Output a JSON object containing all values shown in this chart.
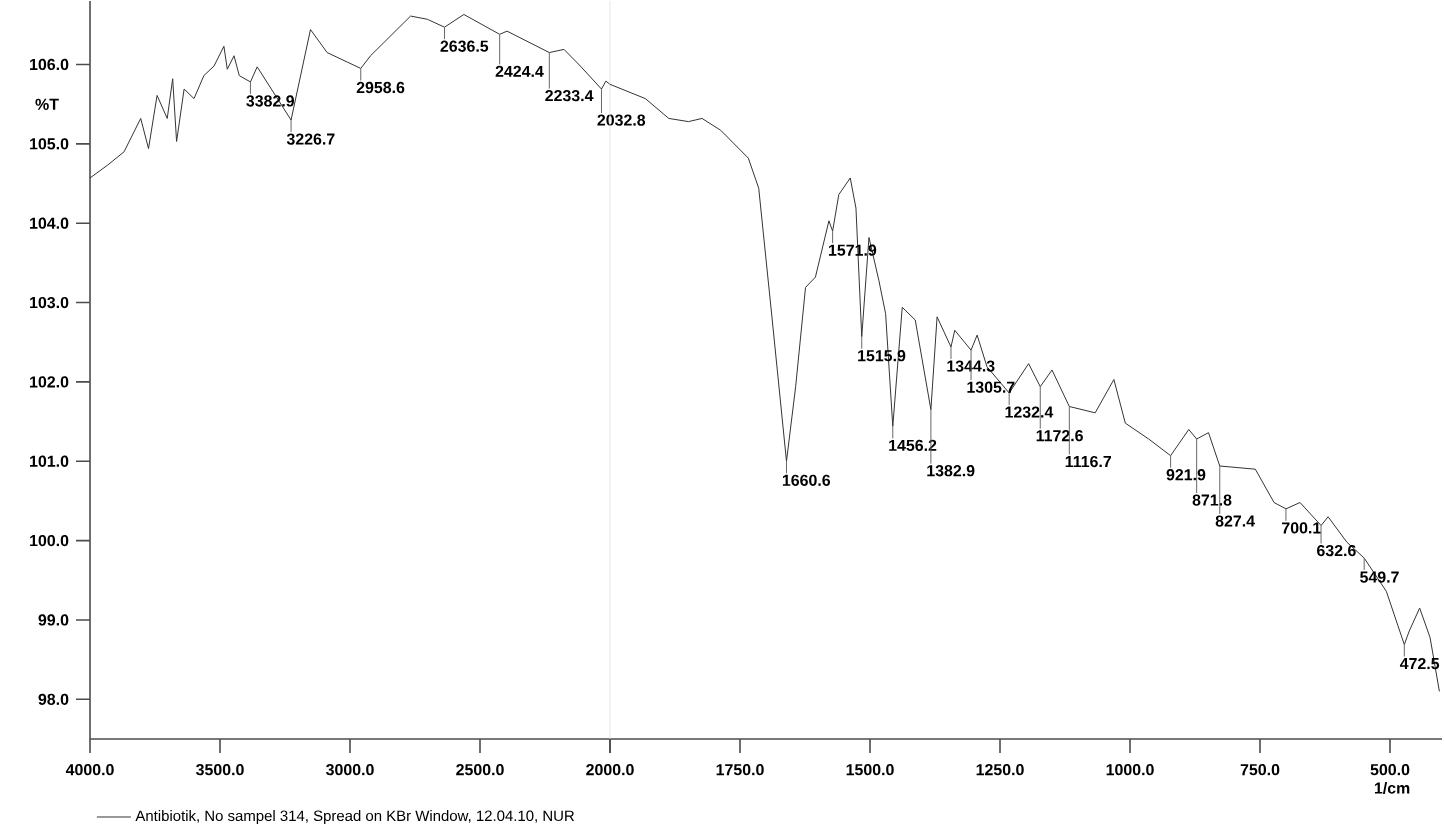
{
  "chart_data": [
    {
      "type": "line",
      "ylabel": "%T",
      "xlim": [
        4000,
        2000
      ],
      "ylim": [
        97.5,
        106.8
      ],
      "xticks": [
        {
          "value": 4000,
          "label": "4000.0"
        },
        {
          "value": 3500,
          "label": "3500.0"
        },
        {
          "value": 3000,
          "label": "3000.0"
        },
        {
          "value": 2500,
          "label": "2500.0"
        },
        {
          "value": 2000,
          "label": null
        }
      ],
      "yticks": [
        {
          "value": 98,
          "label": "98.0"
        },
        {
          "value": 99,
          "label": "99.0"
        },
        {
          "value": 100,
          "label": "100.0"
        },
        {
          "value": 101,
          "label": "101.0"
        },
        {
          "value": 102,
          "label": "102.0"
        },
        {
          "value": 103,
          "label": "103.0"
        },
        {
          "value": 104,
          "label": "104.0"
        },
        {
          "value": 105,
          "label": "105.0"
        },
        {
          "value": 106,
          "label": "106.0"
        }
      ],
      "legend": "bottom left",
      "grid": false,
      "series": [
        {
          "name": "Antibiotik, No sampel 314, Spread on KBr Window, 12.04.10, NUR",
          "color": "#333333",
          "x": [
            4000,
            3933,
            3869,
            3805,
            3775,
            3742,
            3703,
            3682,
            3667,
            3638,
            3600,
            3562,
            3523,
            3485,
            3472,
            3446,
            3426,
            3382.9,
            3357,
            3226.7,
            3152,
            3088,
            2958.6,
            2921,
            2767,
            2703,
            2636.5,
            2562,
            2424.4,
            2396,
            2233.4,
            2177,
            2114,
            2032.8,
            2016,
            2000
          ],
          "values": [
            104.57,
            104.73,
            104.9,
            105.32,
            104.94,
            105.61,
            105.32,
            105.82,
            105.03,
            105.69,
            105.57,
            105.86,
            105.98,
            106.23,
            105.94,
            106.11,
            105.86,
            105.78,
            105.97,
            105.3,
            106.44,
            106.15,
            105.95,
            106.11,
            106.61,
            106.57,
            106.47,
            106.63,
            106.38,
            106.42,
            106.15,
            106.19,
            105.98,
            105.69,
            105.79,
            105.75
          ]
        }
      ],
      "annotations": [
        {
          "text": "3382.9",
          "x": 3382.9,
          "y": 105.78
        },
        {
          "text": "3226.7",
          "x": 3226.7,
          "y": 105.3
        },
        {
          "text": "2958.6",
          "x": 2958.6,
          "y": 105.95
        },
        {
          "text": "2636.5",
          "x": 2636.5,
          "y": 106.47
        },
        {
          "text": "2424.4",
          "x": 2424.4,
          "y": 106.38
        },
        {
          "text": "2233.4",
          "x": 2233.4,
          "y": 106.15
        },
        {
          "text": "2032.8",
          "x": 2032.8,
          "y": 105.69
        }
      ]
    },
    {
      "type": "line",
      "xlabel": "1/cm",
      "tick_labels": "x",
      "grid": false,
      "xlim": [
        2000,
        400
      ],
      "ylim": [
        97.5,
        106.8
      ],
      "yticks": [
        {
          "value": 98,
          "label": null
        },
        {
          "value": 99,
          "label": null
        },
        {
          "value": 100,
          "label": null
        },
        {
          "value": 101,
          "label": null
        },
        {
          "value": 102,
          "label": null
        },
        {
          "value": 103,
          "label": null
        },
        {
          "value": 104,
          "label": null
        },
        {
          "value": 105,
          "label": null
        },
        {
          "value": 106,
          "label": null
        }
      ],
      "xticks": [
        {
          "value": 2000,
          "label": "2000.0"
        },
        {
          "value": 1750,
          "label": "1750.0"
        },
        {
          "value": 1500,
          "label": "1500.0"
        },
        {
          "value": 1250,
          "label": "1250.0"
        },
        {
          "value": 1000,
          "label": "1000.0"
        },
        {
          "value": 750,
          "label": "750.0"
        },
        {
          "value": 500,
          "label": "500.0"
        }
      ],
      "series": [
        {
          "color": "#333333",
          "x": [
            2000,
            1932,
            1887,
            1849,
            1823,
            1787,
            1734,
            1714,
            1688,
            1660.6,
            1643,
            1624,
            1605,
            1579,
            1571.9,
            1560,
            1538,
            1527,
            1515.9,
            1502,
            1483,
            1470,
            1456.2,
            1438,
            1413,
            1382.9,
            1371,
            1344.3,
            1337,
            1305.7,
            1294,
            1275,
            1232.4,
            1195,
            1172.6,
            1150,
            1116.7,
            1067,
            1031,
            1009,
            964,
            921.9,
            887,
            871.8,
            849,
            827.4,
            759,
            723,
            700.1,
            673,
            632.6,
            619,
            583,
            549.7,
            507,
            472.5,
            463,
            443,
            423,
            405
          ],
          "values": [
            105.75,
            105.57,
            105.32,
            105.28,
            105.32,
            105.17,
            104.82,
            104.44,
            102.78,
            101.0,
            101.94,
            103.19,
            103.32,
            104.03,
            103.9,
            104.36,
            104.57,
            104.19,
            102.57,
            103.82,
            103.28,
            102.86,
            101.44,
            102.94,
            102.78,
            101.65,
            102.82,
            102.44,
            102.65,
            102.4,
            102.59,
            102.19,
            101.86,
            102.23,
            101.94,
            102.15,
            101.69,
            101.61,
            102.03,
            101.48,
            101.28,
            101.07,
            101.4,
            101.28,
            101.36,
            100.94,
            100.9,
            100.48,
            100.4,
            100.48,
            100.19,
            100.3,
            99.98,
            99.78,
            99.36,
            98.69,
            98.86,
            99.15,
            98.78,
            98.1
          ]
        }
      ],
      "annotations": [
        {
          "text": "1660.6",
          "x": 1660.6,
          "y": 101.0
        },
        {
          "text": "1571.9",
          "x": 1571.9,
          "y": 103.9
        },
        {
          "text": "1515.9",
          "x": 1515.9,
          "y": 102.57
        },
        {
          "text": "1456.2",
          "x": 1456.2,
          "y": 101.44
        },
        {
          "text": "1382.9",
          "x": 1382.9,
          "y": 101.65
        },
        {
          "text": "1344.3",
          "x": 1344.3,
          "y": 102.44
        },
        {
          "text": "1305.7",
          "x": 1305.7,
          "y": 102.4
        },
        {
          "text": "1232.4",
          "x": 1232.4,
          "y": 101.86
        },
        {
          "text": "1172.6",
          "x": 1172.6,
          "y": 101.94
        },
        {
          "text": "1116.7",
          "x": 1116.7,
          "y": 101.69
        },
        {
          "text": "921.9",
          "x": 921.9,
          "y": 101.07
        },
        {
          "text": "871.8",
          "x": 871.8,
          "y": 101.28
        },
        {
          "text": "827.4",
          "x": 827.4,
          "y": 100.94
        },
        {
          "text": "700.1",
          "x": 700.1,
          "y": 100.4
        },
        {
          "text": "632.6",
          "x": 632.6,
          "y": 100.19
        },
        {
          "text": "549.7",
          "x": 549.7,
          "y": 99.78
        },
        {
          "text": "472.5",
          "x": 472.5,
          "y": 98.69
        }
      ]
    }
  ]
}
